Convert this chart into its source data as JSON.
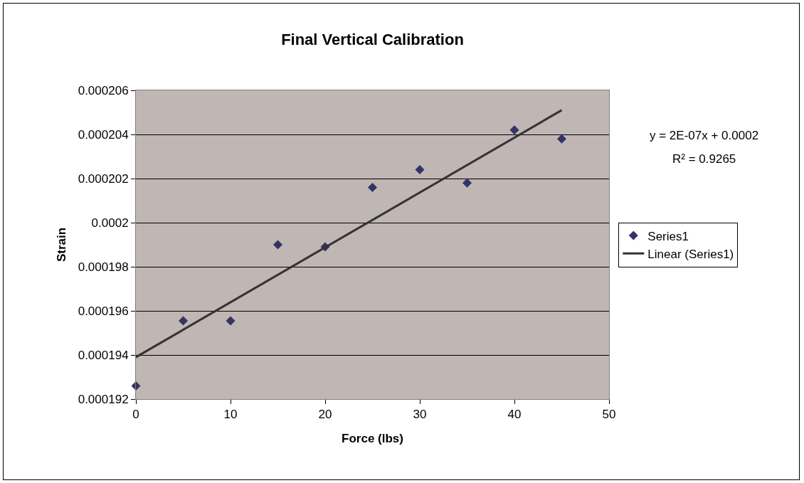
{
  "chart_data": {
    "type": "scatter",
    "title": "Final Vertical Calibration",
    "xlabel": "Force (lbs)",
    "ylabel": "Strain",
    "x": [
      0,
      5,
      10,
      15,
      20,
      25,
      30,
      35,
      40,
      45
    ],
    "series": [
      {
        "name": "Series1",
        "color": "#333366",
        "marker": "diamond",
        "values": [
          0.0001926,
          0.00019555,
          0.00019555,
          0.000199,
          0.0001989,
          0.0002016,
          0.0002024,
          0.0002018,
          0.0002042,
          0.0002038
        ]
      },
      {
        "name": "Linear (Series1)",
        "type": "line",
        "color": "#333333",
        "marker": "none",
        "line_style": "solid",
        "x": [
          0,
          45
        ],
        "values": [
          0.0001939,
          0.0002051
        ]
      }
    ],
    "xlim": [
      0,
      50
    ],
    "xticks": [
      0,
      10,
      20,
      30,
      40,
      50
    ],
    "ylim": [
      0.000192,
      0.000206
    ],
    "yticks": [
      {
        "value": 0.000192,
        "label": "0.000192"
      },
      {
        "value": 0.000194,
        "label": "0.000194"
      },
      {
        "value": 0.000196,
        "label": "0.000196"
      },
      {
        "value": 0.000198,
        "label": "0.000198"
      },
      {
        "value": 0.0002,
        "label": "0.0002"
      },
      {
        "value": 0.000202,
        "label": "0.000202"
      },
      {
        "value": 0.000204,
        "label": "0.000204"
      },
      {
        "value": 0.000206,
        "label": "0.000206"
      }
    ],
    "grid": "y",
    "legend": "right",
    "annotations": [
      "y = 2E-07x + 0.0002",
      "R² = 0.9265"
    ]
  }
}
